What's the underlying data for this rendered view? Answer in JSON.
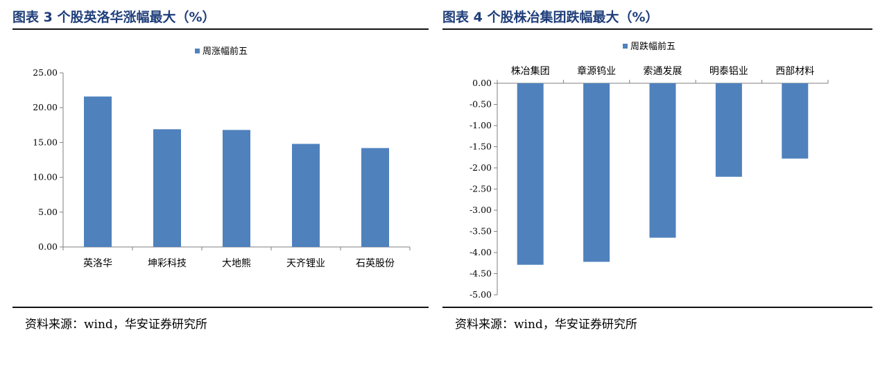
{
  "panels": [
    {
      "title": "图表 3 个股英洛华涨幅最大（%）",
      "source": "资料来源：wind，华安证券研究所",
      "chart_data": {
        "type": "bar",
        "categories": [
          "英洛华",
          "坤彩科技",
          "大地熊",
          "天齐锂业",
          "石英股份"
        ],
        "series": [
          {
            "name": "周涨幅前五",
            "values": [
              21.6,
              16.9,
              16.8,
              14.8,
              14.2
            ]
          }
        ],
        "ylim": [
          0,
          25
        ],
        "yticks": [
          "0.00",
          "5.00",
          "10.00",
          "15.00",
          "20.00",
          "25.00"
        ],
        "tick_values": [
          0,
          5,
          10,
          15,
          20,
          25
        ],
        "legend_position": "top-center",
        "category_axis": "bottom",
        "bar_color": "#4f81bd"
      }
    },
    {
      "title": "图表 4 个股株冶集团跌幅最大（%）",
      "source": "资料来源：wind，华安证券研究所",
      "chart_data": {
        "type": "bar",
        "categories": [
          "株冶集团",
          "章源钨业",
          "索通发展",
          "明泰铝业",
          "西部材料"
        ],
        "series": [
          {
            "name": "周跌幅前五",
            "values": [
              -4.29,
              -4.22,
              -3.65,
              -2.21,
              -1.78
            ]
          }
        ],
        "ylim": [
          -5,
          0
        ],
        "yticks": [
          "0.00",
          "-0.50",
          "-1.00",
          "-1.50",
          "-2.00",
          "-2.50",
          "-3.00",
          "-3.50",
          "-4.00",
          "-4.50",
          "-5.00"
        ],
        "tick_values": [
          0,
          -0.5,
          -1,
          -1.5,
          -2,
          -2.5,
          -3,
          -3.5,
          -4,
          -4.5,
          -5
        ],
        "legend_position": "top-center",
        "category_axis": "top",
        "bar_color": "#4f81bd"
      }
    }
  ]
}
